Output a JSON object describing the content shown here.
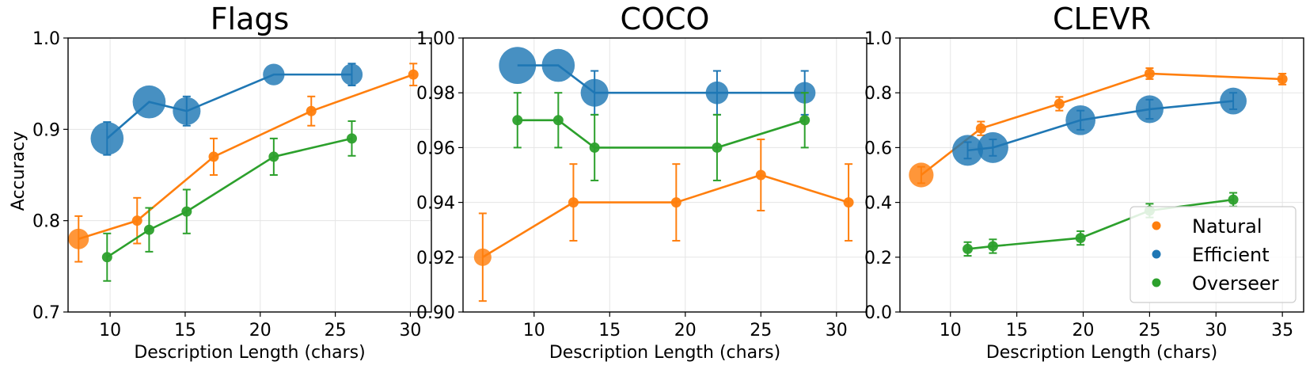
{
  "figure": {
    "ylabel": "Accuracy",
    "legend": {
      "entries": [
        "Natural",
        "Efficient",
        "Overseer"
      ],
      "location": "lower-right of CLEVR panel"
    }
  },
  "colors": {
    "Natural": "#ff7f0e",
    "Efficient": "#1f77b4",
    "Overseer": "#2ca02c",
    "grid": "#e5e5e5",
    "axis": "#000000"
  },
  "chart_data": [
    {
      "type": "line",
      "title": "Flags",
      "xlabel": "Description Length (chars)",
      "ylabel": "Accuracy",
      "xlim": [
        7.2,
        31.4
      ],
      "ylim": [
        0.7,
        1.0
      ],
      "xticks": [
        10,
        15,
        20,
        25,
        30
      ],
      "yticks": [
        0.7,
        0.8,
        0.9,
        1.0
      ],
      "ytick_labels": [
        "0.7",
        "0.8",
        "0.9",
        "1.0"
      ],
      "series": [
        {
          "name": "Natural",
          "x": [
            7.9,
            11.8,
            16.9,
            23.4,
            30.2
          ],
          "y": [
            0.78,
            0.8,
            0.87,
            0.92,
            0.96
          ],
          "err": [
            0.025,
            0.025,
            0.02,
            0.016,
            0.012
          ],
          "size": [
            2.0,
            1,
            1,
            1,
            1
          ]
        },
        {
          "name": "Efficient",
          "x": [
            9.8,
            12.6,
            15.1,
            20.9,
            26.1
          ],
          "y": [
            0.89,
            0.93,
            0.92,
            0.96,
            0.96
          ],
          "err": [
            0.018,
            0.0,
            0.016,
            0.0,
            0.012
          ],
          "size": [
            3.2,
            3.2,
            2.7,
            2.1,
            2.1
          ]
        },
        {
          "name": "Overseer",
          "x": [
            9.8,
            12.6,
            15.1,
            20.9,
            26.1
          ],
          "y": [
            0.76,
            0.79,
            0.81,
            0.87,
            0.89
          ],
          "err": [
            0.026,
            0.024,
            0.024,
            0.02,
            0.019
          ],
          "size": [
            1,
            1,
            1,
            1,
            1
          ]
        }
      ]
    },
    {
      "type": "line",
      "title": "COCO",
      "xlabel": "Description Length (chars)",
      "ylabel": "",
      "xlim": [
        5.3,
        32.0
      ],
      "ylim": [
        0.9,
        1.0
      ],
      "xticks": [
        10,
        15,
        20,
        25,
        30
      ],
      "yticks": [
        0.9,
        0.92,
        0.94,
        0.96,
        0.98,
        1.0
      ],
      "ytick_labels": [
        "0.90",
        "0.92",
        "0.94",
        "0.96",
        "0.98",
        "1.00"
      ],
      "series": [
        {
          "name": "Natural",
          "x": [
            6.6,
            12.6,
            19.4,
            25.0,
            30.8
          ],
          "y": [
            0.92,
            0.94,
            0.94,
            0.95,
            0.94
          ],
          "err": [
            0.016,
            0.014,
            0.014,
            0.013,
            0.014
          ],
          "size": [
            1.7,
            1,
            1,
            1,
            1
          ]
        },
        {
          "name": "Efficient",
          "x": [
            8.9,
            11.6,
            14.0,
            22.1,
            27.9
          ],
          "y": [
            0.99,
            0.99,
            0.98,
            0.98,
            0.98
          ],
          "err": [
            0.0,
            0.0,
            0.008,
            0.008,
            0.008
          ],
          "size": [
            3.6,
            3.2,
            2.7,
            2.2,
            2.1
          ]
        },
        {
          "name": "Overseer",
          "x": [
            8.9,
            11.6,
            14.0,
            22.1,
            27.9
          ],
          "y": [
            0.97,
            0.97,
            0.96,
            0.96,
            0.97
          ],
          "err": [
            0.01,
            0.01,
            0.012,
            0.012,
            0.01
          ],
          "size": [
            1,
            1,
            1,
            1,
            1
          ]
        }
      ]
    },
    {
      "type": "line",
      "title": "CLEVR",
      "xlabel": "Description Length (chars)",
      "ylabel": "",
      "xlim": [
        6.2,
        36.6
      ],
      "ylim": [
        0.0,
        1.0
      ],
      "xticks": [
        10,
        15,
        20,
        25,
        30,
        35
      ],
      "yticks": [
        0.0,
        0.2,
        0.4,
        0.6,
        0.8,
        1.0
      ],
      "ytick_labels": [
        "0.0",
        "0.2",
        "0.4",
        "0.6",
        "0.8",
        "1.0"
      ],
      "series": [
        {
          "name": "Natural",
          "x": [
            7.8,
            12.3,
            18.2,
            25.0,
            35.0
          ],
          "y": [
            0.5,
            0.67,
            0.76,
            0.87,
            0.85
          ],
          "err": [
            0.03,
            0.025,
            0.025,
            0.02,
            0.02
          ],
          "size": [
            2.4,
            1,
            1,
            1,
            1
          ]
        },
        {
          "name": "Efficient",
          "x": [
            11.3,
            13.2,
            19.8,
            25.0,
            31.3
          ],
          "y": [
            0.59,
            0.6,
            0.7,
            0.74,
            0.77
          ],
          "err": [
            0.03,
            0.03,
            0.035,
            0.035,
            0.03
          ],
          "size": [
            3.0,
            3.0,
            2.9,
            2.7,
            2.6
          ]
        },
        {
          "name": "Overseer",
          "x": [
            11.3,
            13.2,
            19.8,
            25.0,
            31.3
          ],
          "y": [
            0.23,
            0.24,
            0.27,
            0.37,
            0.41
          ],
          "err": [
            0.025,
            0.025,
            0.025,
            0.025,
            0.025
          ],
          "size": [
            1,
            1,
            1,
            1,
            1
          ]
        }
      ]
    }
  ]
}
